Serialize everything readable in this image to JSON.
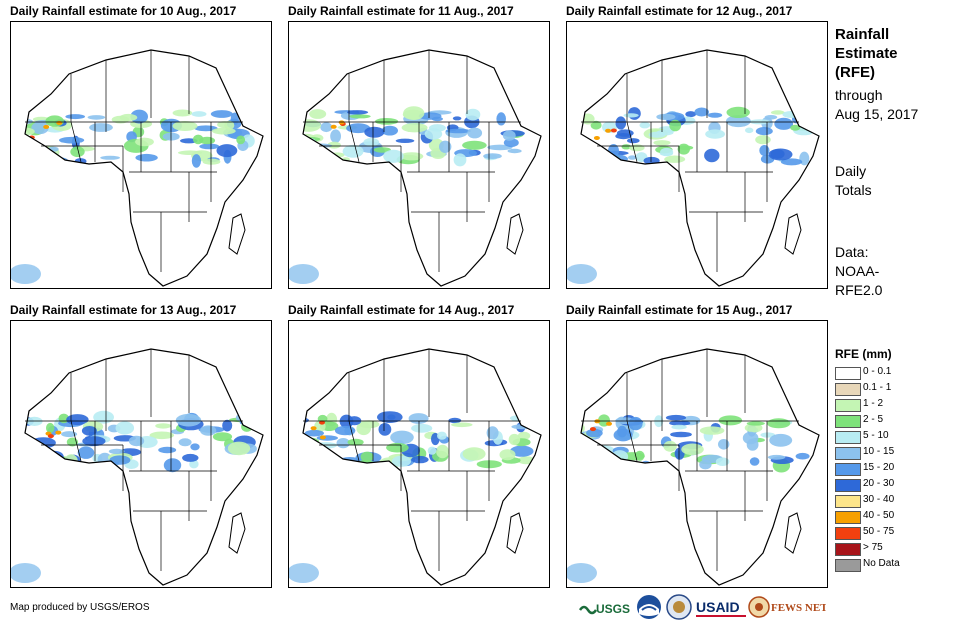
{
  "panels": [
    {
      "title": "Daily Rainfall estimate for 10 Aug., 2017"
    },
    {
      "title": "Daily Rainfall estimate for 11 Aug., 2017"
    },
    {
      "title": "Daily Rainfall estimate for 12 Aug., 2017"
    },
    {
      "title": "Daily Rainfall estimate for 13 Aug., 2017"
    },
    {
      "title": "Daily Rainfall estimate for 14 Aug., 2017"
    },
    {
      "title": "Daily Rainfall estimate for 15 Aug., 2017"
    }
  ],
  "sidebar": {
    "title_line1": "Rainfall",
    "title_line2": "Estimate",
    "title_line3": "(RFE)",
    "through_label": "through",
    "through_date": "Aug 15, 2017",
    "totals_line1": "Daily",
    "totals_line2": "Totals",
    "data_label": "Data:",
    "data_source1": "NOAA-",
    "data_source2": "RFE2.0"
  },
  "legend": {
    "title": "RFE (mm)",
    "items": [
      {
        "label": "0 - 0.1",
        "color": "#ffffff"
      },
      {
        "label": "0.1 - 1",
        "color": "#e8d7b9"
      },
      {
        "label": "1 - 2",
        "color": "#c4f5b4"
      },
      {
        "label": "2 - 5",
        "color": "#7ee27a"
      },
      {
        "label": "5 - 10",
        "color": "#b8ecf3"
      },
      {
        "label": "10 - 15",
        "color": "#8cc2ee"
      },
      {
        "label": "15 - 20",
        "color": "#5599ea"
      },
      {
        "label": "20 - 30",
        "color": "#2e69d8"
      },
      {
        "label": "30 - 40",
        "color": "#fde58a"
      },
      {
        "label": "40 - 50",
        "color": "#f7a000"
      },
      {
        "label": "50 - 75",
        "color": "#f2400f"
      },
      {
        "label": "> 75",
        "color": "#a8141a"
      },
      {
        "label": "No Data",
        "color": "#9a9a9a"
      }
    ]
  },
  "footer": {
    "credit": "Map produced by USGS/EROS"
  },
  "logos": {
    "usgs": "USGS",
    "usaid": "USAID",
    "fewsnet": "FEWS NET"
  }
}
